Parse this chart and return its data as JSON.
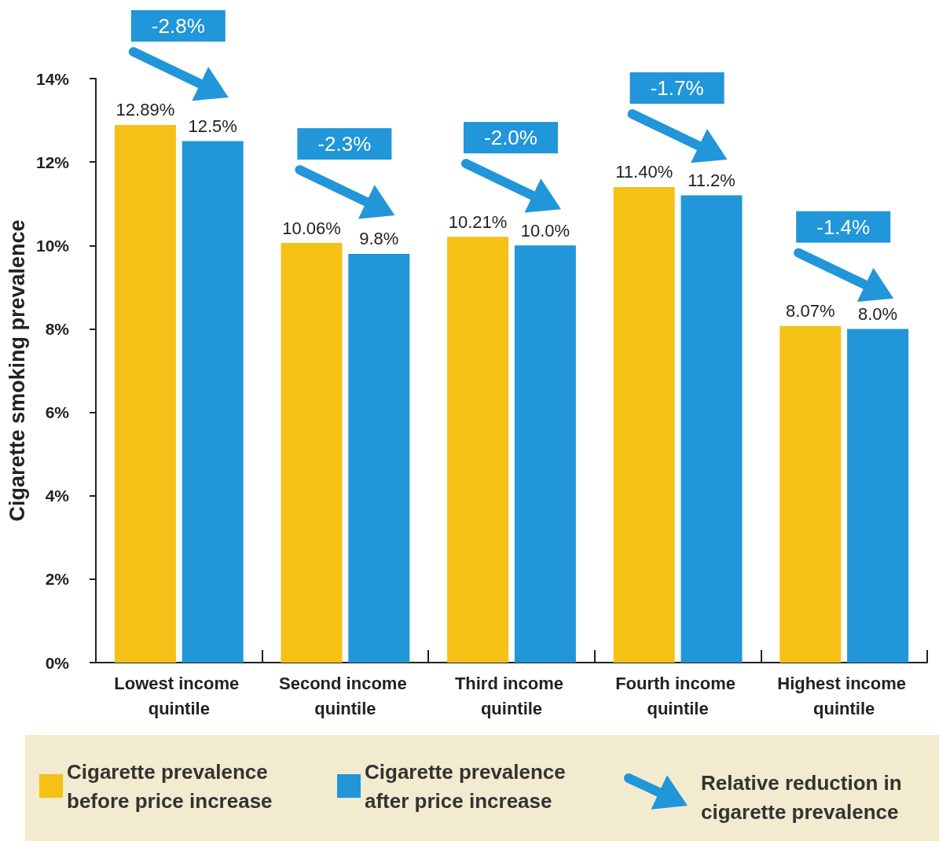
{
  "chart_data": {
    "type": "bar",
    "ylabel": "Cigarette smoking prevalence",
    "categories": [
      "Lowest income quintile",
      "Second income quintile",
      "Third income quintile",
      "Fourth income quintile",
      "Highest income quintile"
    ],
    "series": [
      {
        "name": "Cigarette prevalence before price increase",
        "color": "#f5c116",
        "values": [
          12.89,
          10.06,
          10.21,
          11.4,
          8.07
        ],
        "value_labels": [
          "12.89%",
          "10.06%",
          "10.21%",
          "11.40%",
          "8.07%"
        ]
      },
      {
        "name": "Cigarette prevalence after price increase",
        "color": "#2196d8",
        "values": [
          12.5,
          9.8,
          10.0,
          11.2,
          8.0
        ],
        "value_labels": [
          "12.5%",
          "9.8%",
          "10.0%",
          "11.2%",
          "8.0%"
        ]
      }
    ],
    "ylim": [
      0,
      14
    ],
    "yticks": [
      {
        "value": 0,
        "label": "0%"
      },
      {
        "value": 2,
        "label": "2%"
      },
      {
        "value": 4,
        "label": "4%"
      },
      {
        "value": 6,
        "label": "6%"
      },
      {
        "value": 8,
        "label": "8%"
      },
      {
        "value": 10,
        "label": "10%"
      },
      {
        "value": 12,
        "label": "12%"
      },
      {
        "value": 14,
        "label": "14%"
      }
    ],
    "grid": false,
    "legend": "bottom",
    "annotations": [
      "-2.8%",
      "-2.3%",
      "-2.0%",
      "-1.7%",
      "-1.4%",
      "Relative reduction in cigarette prevalence"
    ]
  }
}
